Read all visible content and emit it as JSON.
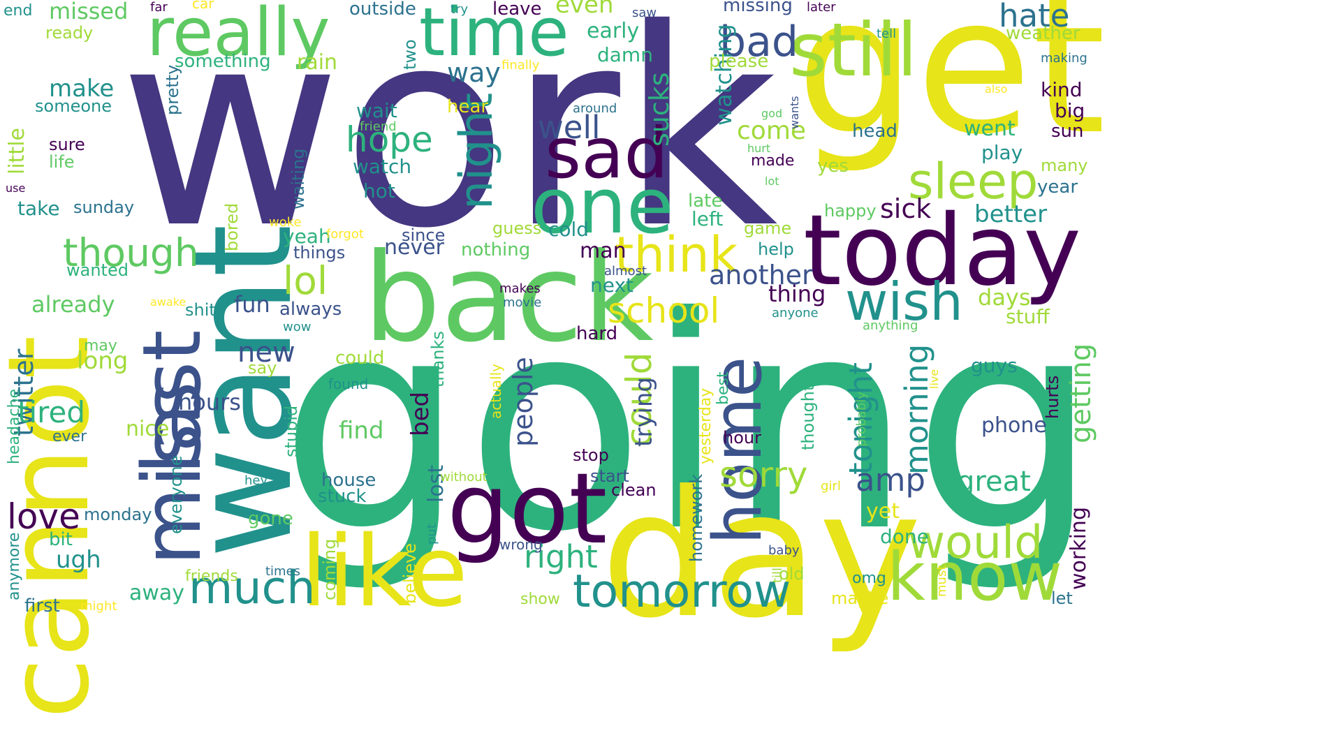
{
  "palette": {
    "indigo": "#453781",
    "green": "#2db27d",
    "yellow": "#e7e419",
    "lime": "#a0da39",
    "teal": "#21918c",
    "purple": "#440154",
    "blue": "#3b528b",
    "ocean": "#2c728e",
    "mint": "#5ec962",
    "light": "#fde725"
  },
  "words": [
    "work",
    "going",
    "get",
    "cannot",
    "want",
    "day",
    "back",
    "today",
    "really",
    "time",
    "still",
    "one",
    "sad",
    "miss",
    "last",
    "got",
    "like",
    "know",
    "home",
    "think",
    "wish",
    "night",
    "sleep",
    "much",
    "tomorrow",
    "would",
    "though",
    "school",
    "bad",
    "lol",
    "sorry",
    "love",
    "hate",
    "could",
    "well",
    "hope",
    "right",
    "morning",
    "tonight",
    "amp",
    "people",
    "great",
    "another",
    "twitter",
    "tired",
    "already",
    "new",
    "make",
    "long",
    "way",
    "missed",
    "end",
    "sick",
    "sucks",
    "watching",
    "early",
    "even",
    "come",
    "missing",
    "better",
    "fun",
    "hours",
    "find",
    "working",
    "getting",
    "little",
    "nice",
    "thing",
    "bed",
    "trying",
    "left",
    "weather",
    "days",
    "never",
    "next",
    "cold",
    "yeah",
    "rain",
    "damn",
    "please",
    "something",
    "someone",
    "went",
    "head",
    "kind",
    "big",
    "sun",
    "year",
    "many",
    "play",
    "wait",
    "watch",
    "hot",
    "hear",
    "late",
    "yes",
    "stuff",
    "guys",
    "phone",
    "take",
    "sunday",
    "man",
    "things",
    "since",
    "nothing",
    "wanted",
    "guess",
    "game",
    "help",
    "happy",
    "bored",
    "shit",
    "always",
    "lost",
    "house",
    "stuck",
    "hard",
    "could",
    "say",
    "ever",
    "ugh",
    "bit",
    "monday",
    "away",
    "gone",
    "friends",
    "first",
    "anymore",
    "stop",
    "start",
    "clean",
    "homework",
    "yesterday",
    "best",
    "hour",
    "thought",
    "yet",
    "done",
    "omg",
    "old",
    "maybe",
    "let",
    "show",
    "believe",
    "coming",
    "wrong",
    "baby",
    "times",
    "headache",
    "may",
    "everyone",
    "stupid",
    "thanks",
    "actually",
    "probably",
    "hurts",
    "live",
    "found",
    "said",
    "without",
    "hey",
    "girl",
    "till",
    "must",
    "put",
    "might",
    "makes",
    "movie",
    "wow",
    "anyone",
    "almost",
    "awake",
    "anything",
    "forgot",
    "woke",
    "waiting",
    "pretty",
    "two",
    "around",
    "friend",
    "god",
    "wants",
    "hurt",
    "lot",
    "made",
    "use",
    "sure",
    "life",
    "ready",
    "far",
    "car",
    "outside",
    "try",
    "leave",
    "saw",
    "later",
    "tell",
    "also",
    "making",
    "finally"
  ]
}
